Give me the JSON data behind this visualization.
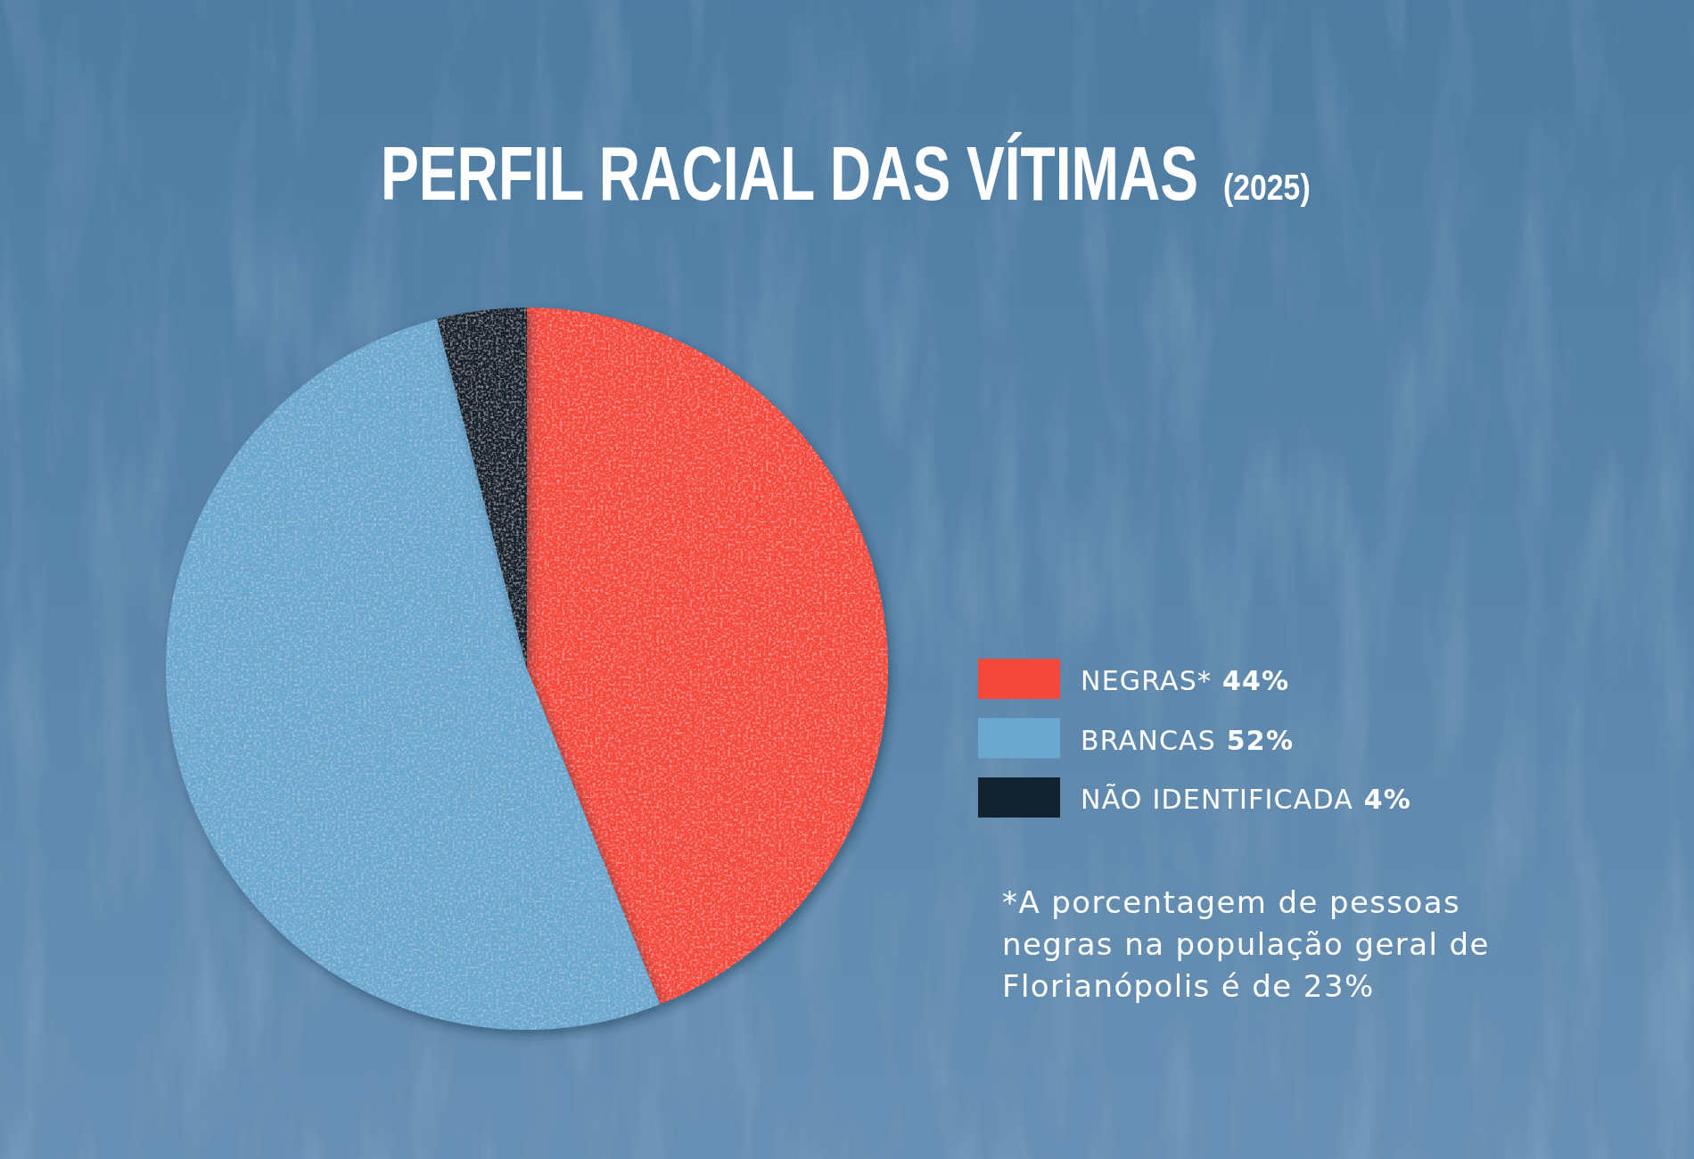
{
  "chart_data": {
    "type": "pie",
    "title": "PERFIL RACIAL DAS VÍTIMAS",
    "subtitle": "(2025)",
    "categories": [
      "NEGRAS*",
      "BRANCAS",
      "NÃO IDENTIFICADA"
    ],
    "values": [
      44,
      52,
      4
    ],
    "colors": [
      "#f5483a",
      "#6ba8cf",
      "#13222f"
    ],
    "value_labels": [
      "44%",
      "52%",
      "4%"
    ],
    "legend": "right",
    "annotations": [
      "*A porcentagem de pessoas negras na população geral de Florianópolis é de 23%"
    ]
  }
}
